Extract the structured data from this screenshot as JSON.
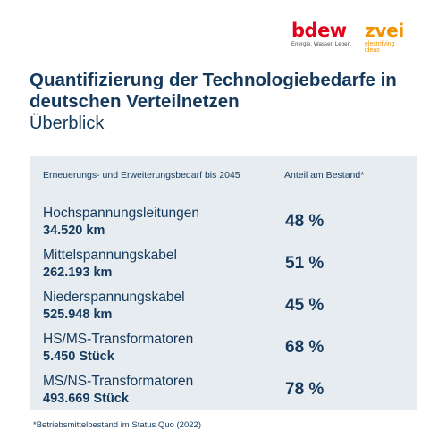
{
  "logos": {
    "bdew": {
      "wordmark": "bdew",
      "tagline": "Energie. Wasser. Leben."
    },
    "zvei": {
      "wordmark": "zvei",
      "tagline": "electrifying ideas"
    }
  },
  "title": "Quantifizierung der Technologiebedarfe in deutschen Verteilnetzen",
  "subtitle": "Überblick",
  "table": {
    "col_left": "Erneuerungs- und Erweiterungsbedarf bis 2045",
    "col_right": "Anteil am Bestand*",
    "rows": [
      {
        "name": "Hochspannungsleitungen",
        "quantity": "34.520 km",
        "share": "48 %"
      },
      {
        "name": "Mittelspannungskabel",
        "quantity": "262.193 km",
        "share": "51 %"
      },
      {
        "name": "Niederspannungskabel",
        "quantity": "525.948 km",
        "share": "45 %"
      },
      {
        "name": "HS/MS-Transformatoren",
        "quantity": "5.450 Stück",
        "share": "68 %"
      },
      {
        "name": "MS/NS-Transformatoren",
        "quantity": "493.669 Stück",
        "share": "78 %"
      }
    ]
  },
  "footnote": "*Betriebsmittelbestand im Status Quo (2022)",
  "colors": {
    "text": "#14395c",
    "panel": "#e7ecf1",
    "bdew_red": "#e2001a",
    "zvei_orange": "#f39200"
  }
}
